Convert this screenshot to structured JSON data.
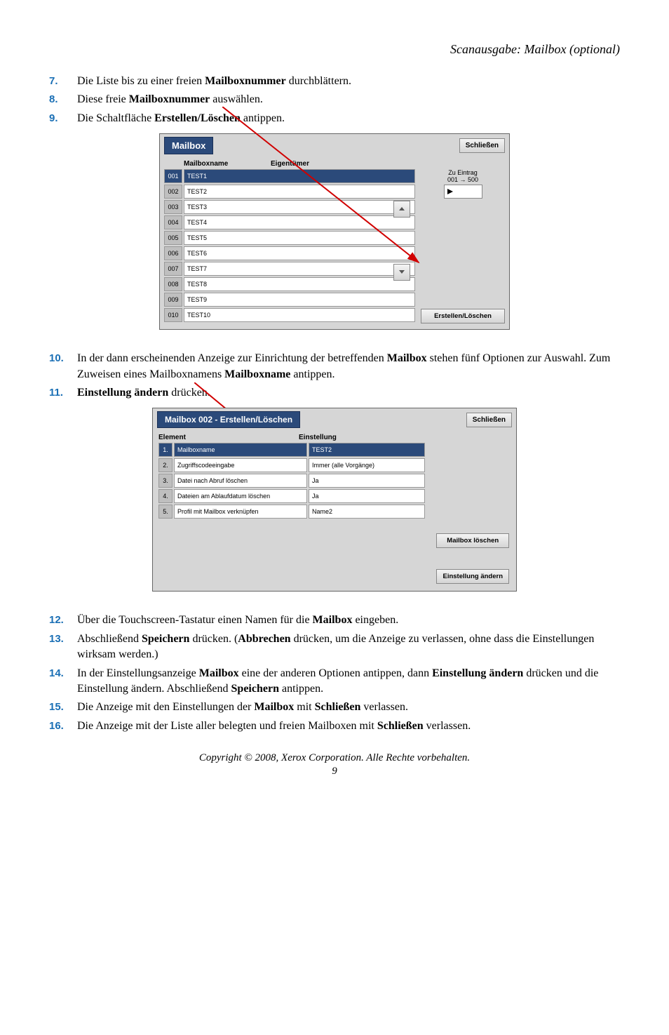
{
  "header_title": "Scanausgabe: Mailbox (optional)",
  "steps_top": [
    {
      "num": "7.",
      "parts": [
        "Die Liste bis zu einer freien ",
        {
          "b": "Mailboxnummer"
        },
        " durchblättern."
      ]
    },
    {
      "num": "8.",
      "parts": [
        "Diese freie ",
        {
          "b": "Mailboxnummer"
        },
        " auswählen."
      ]
    },
    {
      "num": "9.",
      "parts": [
        "Die Schaltfläche ",
        {
          "b": "Erstellen/Löschen"
        },
        " antippen."
      ]
    }
  ],
  "shot1": {
    "title": "Mailbox",
    "close_label": "Schließen",
    "col_name": "Mailboxname",
    "col_owner": "Eigentümer",
    "goto_label_line1": "Zu Eintrag",
    "goto_label_line2": "001 → 500",
    "create_delete_label": "Erstellen/Löschen",
    "rows": [
      {
        "idx": "001",
        "name": "TEST1",
        "selected": true
      },
      {
        "idx": "002",
        "name": "TEST2"
      },
      {
        "idx": "003",
        "name": "TEST3"
      },
      {
        "idx": "004",
        "name": "TEST4"
      },
      {
        "idx": "005",
        "name": "TEST5"
      },
      {
        "idx": "006",
        "name": "TEST6"
      },
      {
        "idx": "007",
        "name": "TEST7"
      },
      {
        "idx": "008",
        "name": "TEST8"
      },
      {
        "idx": "009",
        "name": "TEST9"
      },
      {
        "idx": "010",
        "name": "TEST10"
      }
    ]
  },
  "steps_mid": [
    {
      "num": "10.",
      "parts": [
        "In der dann erscheinenden Anzeige zur Einrichtung der betreffenden ",
        {
          "b": "Mailbox"
        },
        " stehen fünf Optionen zur Auswahl. Zum Zuweisen eines Mailboxnamens ",
        {
          "b": "Mailboxname"
        },
        " antippen."
      ]
    },
    {
      "num": "11.",
      "parts": [
        {
          "b": "Einstellung ändern"
        },
        " drücken."
      ]
    }
  ],
  "shot2": {
    "title": "Mailbox 002 - Erstellen/Löschen",
    "close_label": "Schließen",
    "col_element": "Element",
    "col_setting": "Einstellung",
    "rows": [
      {
        "n": "1.",
        "el": "Mailboxname",
        "val": "TEST2",
        "selected": true
      },
      {
        "n": "2.",
        "el": "Zugriffscodeeingabe",
        "val": "Immer (alle Vorgänge)"
      },
      {
        "n": "3.",
        "el": "Datei nach Abruf löschen",
        "val": "Ja"
      },
      {
        "n": "4.",
        "el": "Dateien am Ablaufdatum löschen",
        "val": "Ja"
      },
      {
        "n": "5.",
        "el": "Profil mit Mailbox verknüpfen",
        "val": "Name2"
      }
    ],
    "delete_label": "Mailbox löschen",
    "change_label": "Einstellung ändern"
  },
  "steps_bottom": [
    {
      "num": "12.",
      "parts": [
        "Über die Touchscreen-Tastatur einen Namen für die ",
        {
          "b": "Mailbox"
        },
        " eingeben."
      ]
    },
    {
      "num": "13.",
      "parts": [
        "Abschließend ",
        {
          "b": "Speichern"
        },
        " drücken. (",
        {
          "b": "Abbrechen"
        },
        " drücken, um die Anzeige zu verlassen, ohne dass die Einstellungen wirksam werden.)"
      ]
    },
    {
      "num": "14.",
      "parts": [
        "In der Einstellungsanzeige ",
        {
          "b": "Mailbox"
        },
        " eine der anderen Optionen antippen, dann ",
        {
          "b": "Einstellung ändern"
        },
        " drücken und die Einstellung ändern. Abschließend ",
        {
          "b": "Speichern"
        },
        " antippen."
      ]
    },
    {
      "num": "15.",
      "parts": [
        "Die Anzeige mit den Einstellungen der ",
        {
          "b": "Mailbox"
        },
        " mit ",
        {
          "b": "Schließen"
        },
        " verlassen."
      ]
    },
    {
      "num": "16.",
      "parts": [
        "Die Anzeige mit der Liste aller belegten und freien Mailboxen mit ",
        {
          "b": "Schließen"
        },
        " verlassen."
      ]
    }
  ],
  "footer": "Copyright © 2008, Xerox Corporation. Alle Rechte vorbehalten.",
  "page_number": "9",
  "colors": {
    "step_num": "#1a6fb5",
    "title_bg": "#2b4a7a",
    "arrow": "#d00000"
  }
}
